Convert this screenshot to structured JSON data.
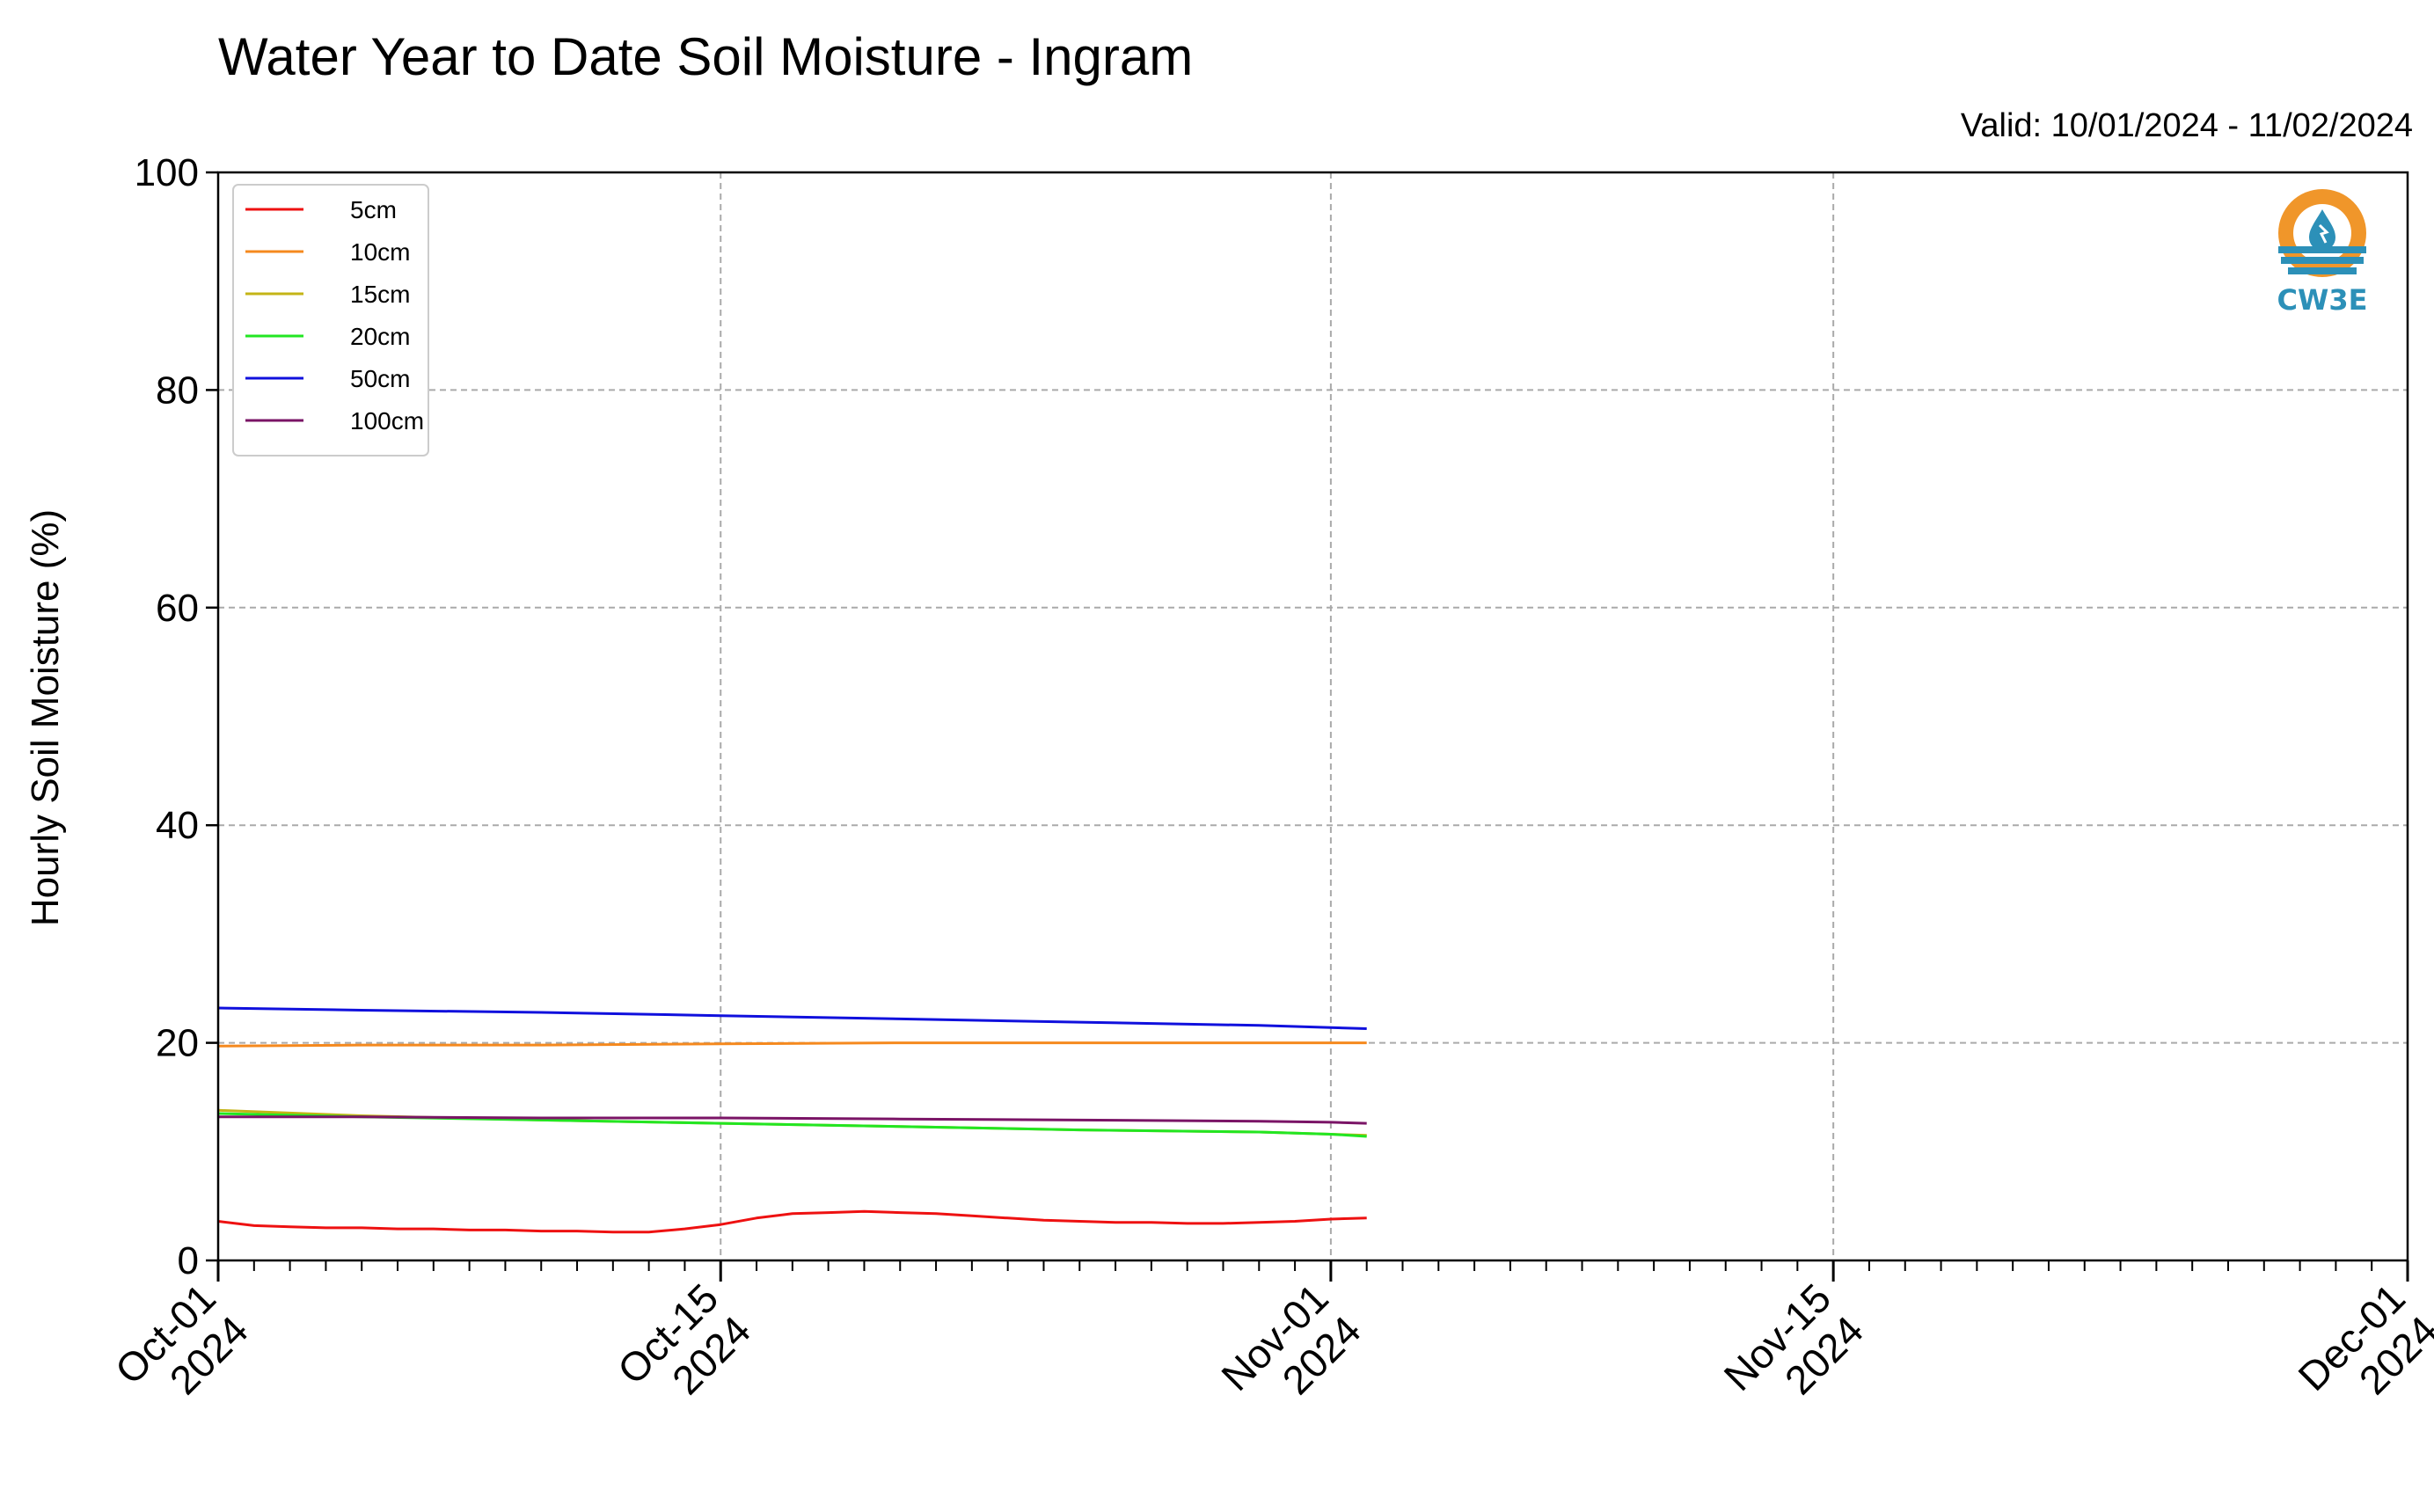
{
  "header": {
    "title": "Water Year to Date Soil Moisture - Ingram",
    "valid_text": "Valid: 10/01/2024 - 11/02/2024"
  },
  "logo": {
    "text": "CW3E",
    "icon": "water-drop-logo-icon",
    "colors": {
      "ring": "#f0962a",
      "drop": "#2c90b8"
    }
  },
  "chart_data": {
    "type": "line",
    "title": "Water Year to Date Soil Moisture - Ingram",
    "xlabel": "",
    "ylabel": "Hourly Soil Moisture (%)",
    "x_range": [
      "2024-10-01",
      "2024-12-01"
    ],
    "ylim": [
      0,
      100
    ],
    "y_ticks": [
      0,
      20,
      40,
      60,
      80,
      100
    ],
    "x_ticks": [
      {
        "date": "2024-10-01",
        "label": "Oct-01",
        "year": "2024"
      },
      {
        "date": "2024-10-15",
        "label": "Oct-15",
        "year": "2024"
      },
      {
        "date": "2024-11-01",
        "label": "Nov-01",
        "year": "2024"
      },
      {
        "date": "2024-11-15",
        "label": "Nov-15",
        "year": "2024"
      },
      {
        "date": "2024-12-01",
        "label": "Dec-01",
        "year": "2024"
      }
    ],
    "grid": true,
    "legend_position": "top-left",
    "series": [
      {
        "name": "5cm",
        "color": "#ee1111",
        "x": [
          "2024-10-01",
          "2024-10-02",
          "2024-10-03",
          "2024-10-04",
          "2024-10-05",
          "2024-10-06",
          "2024-10-07",
          "2024-10-08",
          "2024-10-09",
          "2024-10-10",
          "2024-10-11",
          "2024-10-12",
          "2024-10-13",
          "2024-10-14",
          "2024-10-15",
          "2024-10-16",
          "2024-10-17",
          "2024-10-18",
          "2024-10-19",
          "2024-10-20",
          "2024-10-21",
          "2024-10-22",
          "2024-10-23",
          "2024-10-24",
          "2024-10-25",
          "2024-10-26",
          "2024-10-27",
          "2024-10-28",
          "2024-10-29",
          "2024-10-30",
          "2024-10-31",
          "2024-11-01",
          "2024-11-02"
        ],
        "y": [
          3.6,
          3.2,
          3.1,
          3.0,
          3.0,
          2.9,
          2.9,
          2.8,
          2.8,
          2.7,
          2.7,
          2.6,
          2.6,
          2.9,
          3.3,
          3.9,
          4.3,
          4.4,
          4.5,
          4.4,
          4.3,
          4.1,
          3.9,
          3.7,
          3.6,
          3.5,
          3.5,
          3.4,
          3.4,
          3.5,
          3.6,
          3.8,
          3.9
        ]
      },
      {
        "name": "10cm",
        "color": "#f5891e",
        "x": [
          "2024-10-01",
          "2024-10-05",
          "2024-10-10",
          "2024-10-15",
          "2024-10-20",
          "2024-10-25",
          "2024-10-30",
          "2024-11-01",
          "2024-11-02"
        ],
        "y": [
          19.7,
          19.8,
          19.8,
          19.9,
          20.0,
          20.0,
          20.0,
          20.0,
          20.0
        ]
      },
      {
        "name": "15cm",
        "color": "#c4b416",
        "x": [
          "2024-10-01",
          "2024-10-05",
          "2024-10-10",
          "2024-10-15",
          "2024-10-20",
          "2024-10-25",
          "2024-10-30",
          "2024-11-01",
          "2024-11-02"
        ],
        "y": [
          13.8,
          13.3,
          12.9,
          12.6,
          12.3,
          12.0,
          11.8,
          11.6,
          11.5
        ]
      },
      {
        "name": "20cm",
        "color": "#22e622",
        "x": [
          "2024-10-01",
          "2024-10-05",
          "2024-10-10",
          "2024-10-15",
          "2024-10-20",
          "2024-10-25",
          "2024-10-30",
          "2024-11-01",
          "2024-11-02"
        ],
        "y": [
          13.5,
          13.2,
          12.9,
          12.6,
          12.3,
          12.0,
          11.8,
          11.6,
          11.4
        ]
      },
      {
        "name": "50cm",
        "color": "#1010dd",
        "x": [
          "2024-10-01",
          "2024-10-05",
          "2024-10-10",
          "2024-10-15",
          "2024-10-20",
          "2024-10-25",
          "2024-10-30",
          "2024-11-01",
          "2024-11-02"
        ],
        "y": [
          23.2,
          23.0,
          22.8,
          22.5,
          22.2,
          21.9,
          21.6,
          21.4,
          21.3
        ]
      },
      {
        "name": "100cm",
        "color": "#7a1466",
        "x": [
          "2024-10-01",
          "2024-10-05",
          "2024-10-10",
          "2024-10-15",
          "2024-10-20",
          "2024-10-25",
          "2024-10-30",
          "2024-11-01",
          "2024-11-02"
        ],
        "y": [
          13.2,
          13.2,
          13.1,
          13.1,
          13.0,
          12.9,
          12.8,
          12.7,
          12.6
        ]
      }
    ]
  }
}
